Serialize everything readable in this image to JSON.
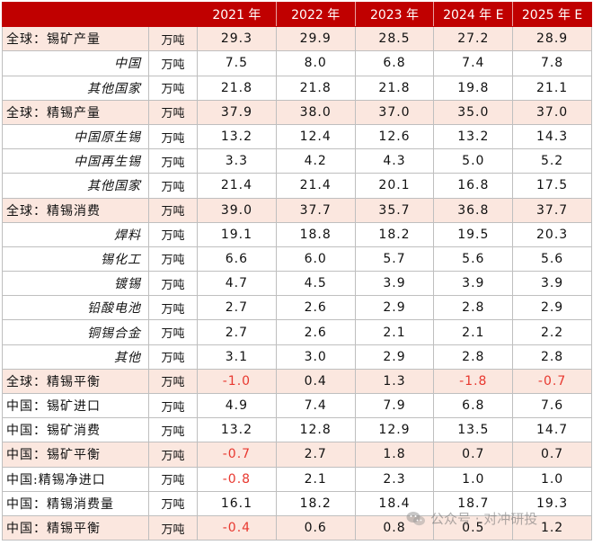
{
  "header": {
    "label": "",
    "unit": "",
    "years": [
      "2021 年",
      "2022 年",
      "2023 年",
      "2024 年 E",
      "2025 年 E"
    ]
  },
  "rows": [
    {
      "label": "全球：锡矿产量",
      "unit": "万吨",
      "highlight": true,
      "values": [
        "29.3",
        "29.9",
        "28.5",
        "27.2",
        "28.9"
      ]
    },
    {
      "label": "中国",
      "unit": "万吨",
      "highlight": false,
      "values": [
        "7.5",
        "8.0",
        "6.8",
        "7.4",
        "7.8"
      ]
    },
    {
      "label": "其他国家",
      "unit": "万吨",
      "highlight": false,
      "values": [
        "21.8",
        "21.8",
        "21.8",
        "19.8",
        "21.1"
      ]
    },
    {
      "label": "全球：精锡产量",
      "unit": "万吨",
      "highlight": true,
      "values": [
        "37.9",
        "38.0",
        "37.0",
        "35.0",
        "37.0"
      ]
    },
    {
      "label": "中国原生锡",
      "unit": "万吨",
      "highlight": false,
      "values": [
        "13.2",
        "12.4",
        "12.6",
        "13.2",
        "14.3"
      ]
    },
    {
      "label": "中国再生锡",
      "unit": "万吨",
      "highlight": false,
      "values": [
        "3.3",
        "4.2",
        "4.3",
        "5.0",
        "5.2"
      ]
    },
    {
      "label": "其他国家",
      "unit": "万吨",
      "highlight": false,
      "values": [
        "21.4",
        "21.4",
        "20.1",
        "16.8",
        "17.5"
      ]
    },
    {
      "label": "全球：精锡消费",
      "unit": "万吨",
      "highlight": true,
      "values": [
        "39.0",
        "37.7",
        "35.7",
        "36.8",
        "37.7"
      ]
    },
    {
      "label": "焊料",
      "unit": "万吨",
      "highlight": false,
      "values": [
        "19.1",
        "18.8",
        "18.2",
        "19.5",
        "20.3"
      ]
    },
    {
      "label": "锡化工",
      "unit": "万吨",
      "highlight": false,
      "values": [
        "6.6",
        "6.0",
        "5.7",
        "5.6",
        "5.6"
      ]
    },
    {
      "label": "镀锡",
      "unit": "万吨",
      "highlight": false,
      "values": [
        "4.7",
        "4.5",
        "3.9",
        "3.9",
        "3.9"
      ]
    },
    {
      "label": "铅酸电池",
      "unit": "万吨",
      "highlight": false,
      "values": [
        "2.7",
        "2.6",
        "2.9",
        "2.8",
        "2.9"
      ]
    },
    {
      "label": "铜锡合金",
      "unit": "万吨",
      "highlight": false,
      "values": [
        "2.7",
        "2.6",
        "2.1",
        "2.1",
        "2.2"
      ]
    },
    {
      "label": "其他",
      "unit": "万吨",
      "highlight": false,
      "values": [
        "3.1",
        "3.0",
        "2.9",
        "2.8",
        "2.8"
      ]
    },
    {
      "label": "全球：精锡平衡",
      "unit": "万吨",
      "highlight": true,
      "values": [
        "-1.0",
        "0.4",
        "1.3",
        "-1.8",
        "-0.7"
      ]
    },
    {
      "label": "中国：锡矿进口",
      "unit": "万吨",
      "highlight": false,
      "values": [
        "4.9",
        "7.4",
        "7.9",
        "6.8",
        "7.6"
      ]
    },
    {
      "label": "中国：锡矿消费",
      "unit": "万吨",
      "highlight": false,
      "values": [
        "13.2",
        "12.8",
        "12.9",
        "13.5",
        "14.7"
      ]
    },
    {
      "label": "中国：锡矿平衡",
      "unit": "万吨",
      "highlight": true,
      "values": [
        "-0.7",
        "2.7",
        "1.8",
        "0.7",
        "0.7"
      ]
    },
    {
      "label": "中国:精锡净进口",
      "unit": "万吨",
      "highlight": false,
      "values": [
        "-0.8",
        "2.1",
        "2.3",
        "1.0",
        "1.0"
      ]
    },
    {
      "label": "中国：精锡消费量",
      "unit": "万吨",
      "highlight": false,
      "values": [
        "16.1",
        "18.2",
        "18.4",
        "18.7",
        "19.3"
      ]
    },
    {
      "label": "中国：精锡平衡",
      "unit": "万吨",
      "highlight": true,
      "values": [
        "-0.4",
        "0.6",
        "0.8",
        "0.5",
        "1.2"
      ]
    }
  ],
  "watermark": {
    "text": "公众号 · 对冲研投",
    "icon": "wechat-icon"
  },
  "colors": {
    "header_bg": "#c00000",
    "highlight_bg": "#fbe7df",
    "negative": "#e8382f"
  }
}
